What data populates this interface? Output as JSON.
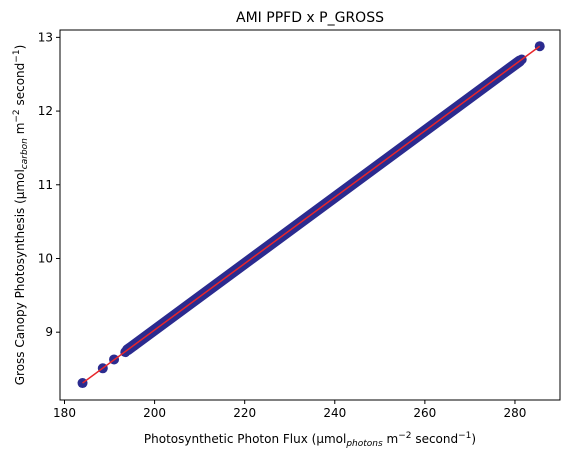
{
  "chart_data": {
    "type": "scatter",
    "title": "AMI PPFD x P_GROSS",
    "xlabel": {
      "main": "Photosynthetic Photon Flux (µmol",
      "sub": "photons",
      "rest1": " m",
      "sup1": "−2",
      "rest2": " second",
      "sup2": "−1",
      "end": ")"
    },
    "ylabel": {
      "main": "Gross Canopy Photosynthesis (µmol",
      "sub": "carbon",
      "rest1": " m",
      "sup1": "−2",
      "rest2": " second",
      "sup2": "−1",
      "end": ")"
    },
    "xlim": [
      179,
      290
    ],
    "ylim": [
      8.08,
      13.1
    ],
    "xticks": [
      180,
      200,
      220,
      240,
      260,
      280
    ],
    "yticks": [
      9,
      10,
      11,
      12,
      13
    ],
    "x_range_points": [
      184,
      285.5
    ],
    "fit_line": {
      "x": [
        184,
        285.5
      ],
      "y": [
        8.31,
        12.88
      ]
    },
    "isolated_points": [
      {
        "x": 184,
        "y": 8.31
      },
      {
        "x": 188.5,
        "y": 8.51
      },
      {
        "x": 191,
        "y": 8.63
      },
      {
        "x": 193.5,
        "y": 8.73
      },
      {
        "x": 195.5,
        "y": 8.82
      },
      {
        "x": 281.5,
        "y": 12.7
      },
      {
        "x": 285.5,
        "y": 12.88
      }
    ],
    "dense_range": [
      194,
      281
    ],
    "point_color": "#2b2b8f",
    "line_color": "#e8262a",
    "grid": false,
    "legend": "none"
  }
}
